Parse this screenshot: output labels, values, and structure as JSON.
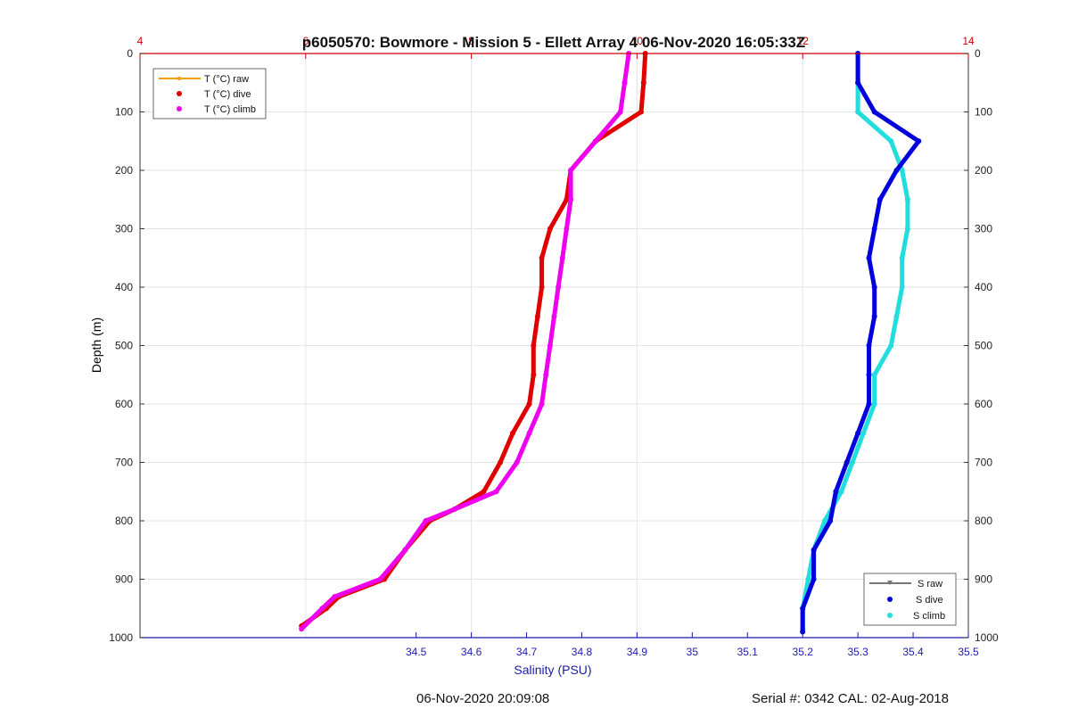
{
  "chart_data": {
    "type": "scatter",
    "title": "p6050570: Bowmore - Mission 5 - Ellett Array 4 06-Nov-2020 16:05:33Z",
    "ylabel": "Depth (m)",
    "xlabel_bottom": "Salinity (PSU)",
    "ylim": [
      0,
      1000
    ],
    "y_reversed": true,
    "y_ticks": [
      "0",
      "100",
      "200",
      "300",
      "400",
      "500",
      "600",
      "700",
      "800",
      "900",
      "1000"
    ],
    "y_tick_values": [
      0,
      100,
      200,
      300,
      400,
      500,
      600,
      700,
      800,
      900,
      1000
    ],
    "x_top": {
      "range": [
        4,
        14
      ],
      "ticks": [
        "4",
        "6",
        "8",
        "10",
        "12",
        "14"
      ],
      "tick_values": [
        4,
        6,
        8,
        10,
        12,
        14
      ],
      "color": "#cc0000"
    },
    "x_bottom": {
      "range": [
        34,
        35.5
      ],
      "ticks": [
        "34.5",
        "34.6",
        "34.7",
        "34.8",
        "34.9",
        "35",
        "35.1",
        "35.2",
        "35.3",
        "35.4",
        "35.5"
      ],
      "tick_values": [
        34.5,
        34.6,
        34.7,
        34.8,
        34.9,
        35.0,
        35.1,
        35.2,
        35.3,
        35.4,
        35.5
      ],
      "color": "#1a1aaa"
    },
    "grid": true,
    "legend_temperature": {
      "placement": "top-left",
      "entries": [
        "T (°C) raw",
        "T (°C) dive",
        "T (°C) climb"
      ]
    },
    "legend_salinity": {
      "placement": "bottom-right",
      "entries": [
        "S raw",
        "S dive",
        "S climb"
      ]
    },
    "series": [
      {
        "name": "T (°C) dive",
        "axis": "top",
        "color": "#e00000",
        "points": [
          [
            10.1,
            0
          ],
          [
            10.08,
            50
          ],
          [
            10.05,
            100
          ],
          [
            9.5,
            150
          ],
          [
            9.2,
            200
          ],
          [
            9.15,
            250
          ],
          [
            8.95,
            300
          ],
          [
            8.85,
            350
          ],
          [
            8.85,
            400
          ],
          [
            8.8,
            450
          ],
          [
            8.75,
            500
          ],
          [
            8.75,
            550
          ],
          [
            8.7,
            600
          ],
          [
            8.5,
            650
          ],
          [
            8.35,
            700
          ],
          [
            8.15,
            750
          ],
          [
            7.8,
            780
          ],
          [
            7.5,
            800
          ],
          [
            7.2,
            850
          ],
          [
            6.95,
            900
          ],
          [
            6.4,
            930
          ],
          [
            6.25,
            950
          ],
          [
            5.95,
            980
          ]
        ]
      },
      {
        "name": "T (°C) climb",
        "axis": "top",
        "color": "#ee00ee",
        "points": [
          [
            9.9,
            0
          ],
          [
            9.85,
            50
          ],
          [
            9.8,
            100
          ],
          [
            9.5,
            150
          ],
          [
            9.2,
            200
          ],
          [
            9.2,
            250
          ],
          [
            9.15,
            300
          ],
          [
            9.1,
            350
          ],
          [
            9.05,
            400
          ],
          [
            9.0,
            450
          ],
          [
            8.95,
            500
          ],
          [
            8.9,
            550
          ],
          [
            8.85,
            600
          ],
          [
            8.7,
            650
          ],
          [
            8.55,
            700
          ],
          [
            8.3,
            750
          ],
          [
            7.8,
            780
          ],
          [
            7.45,
            800
          ],
          [
            7.2,
            850
          ],
          [
            6.9,
            900
          ],
          [
            6.35,
            930
          ],
          [
            6.2,
            950
          ],
          [
            5.95,
            985
          ]
        ]
      },
      {
        "name": "S dive",
        "axis": "bottom",
        "color": "#0000dd",
        "points": [
          [
            35.3,
            0
          ],
          [
            35.3,
            50
          ],
          [
            35.33,
            100
          ],
          [
            35.41,
            150
          ],
          [
            35.37,
            200
          ],
          [
            35.34,
            250
          ],
          [
            35.33,
            300
          ],
          [
            35.32,
            350
          ],
          [
            35.33,
            400
          ],
          [
            35.33,
            450
          ],
          [
            35.32,
            500
          ],
          [
            35.32,
            550
          ],
          [
            35.32,
            600
          ],
          [
            35.3,
            650
          ],
          [
            35.28,
            700
          ],
          [
            35.26,
            750
          ],
          [
            35.25,
            800
          ],
          [
            35.22,
            850
          ],
          [
            35.22,
            900
          ],
          [
            35.2,
            950
          ],
          [
            35.2,
            990
          ]
        ]
      },
      {
        "name": "S climb",
        "axis": "bottom",
        "color": "#22dddd",
        "points": [
          [
            35.3,
            0
          ],
          [
            35.3,
            50
          ],
          [
            35.3,
            100
          ],
          [
            35.36,
            150
          ],
          [
            35.38,
            200
          ],
          [
            35.39,
            250
          ],
          [
            35.39,
            300
          ],
          [
            35.38,
            350
          ],
          [
            35.38,
            400
          ],
          [
            35.37,
            450
          ],
          [
            35.36,
            500
          ],
          [
            35.33,
            550
          ],
          [
            35.33,
            600
          ],
          [
            35.31,
            650
          ],
          [
            35.29,
            700
          ],
          [
            35.27,
            750
          ],
          [
            35.24,
            800
          ],
          [
            35.22,
            850
          ],
          [
            35.21,
            900
          ],
          [
            35.2,
            950
          ],
          [
            35.2,
            985
          ]
        ]
      }
    ]
  },
  "footer": {
    "datetime": "06-Nov-2020 20:09:08",
    "serial": "Serial #: 0342  CAL: 02-Aug-2018"
  }
}
